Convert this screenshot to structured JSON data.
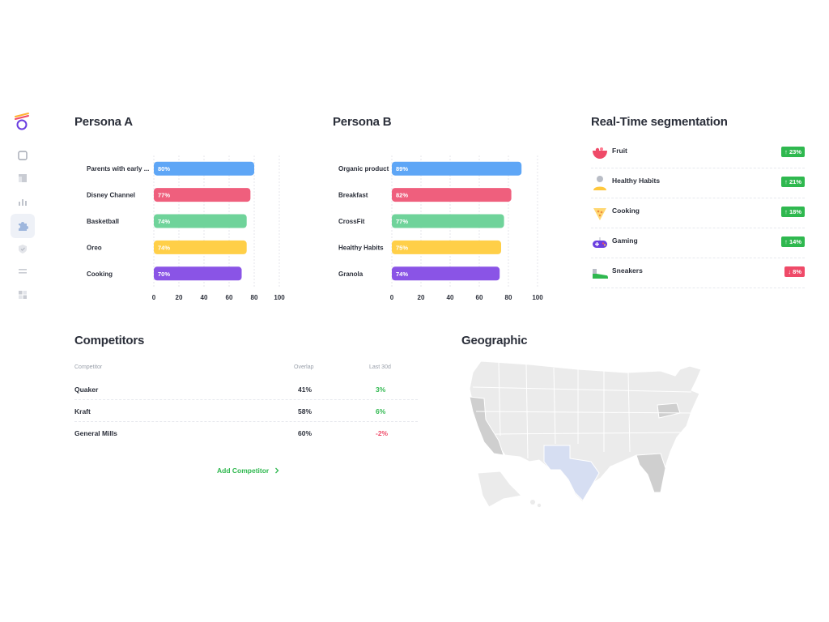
{
  "sidebar": {
    "icons": [
      "logo-icon",
      "square-icon",
      "layout-icon",
      "bar-chart-icon",
      "puzzle-icon",
      "shield-icon",
      "list-icon",
      "grid-icon"
    ],
    "active": "puzzle-icon"
  },
  "persona_a": {
    "title": "Persona A",
    "chart_data": {
      "type": "bar",
      "orientation": "horizontal",
      "categories": [
        "Parents with early ...",
        "Disney Channel",
        "Basketball",
        "Oreo",
        "Cooking"
      ],
      "values": [
        80,
        77,
        74,
        74,
        70
      ],
      "value_labels": [
        "80%",
        "77%",
        "74%",
        "74%",
        "70%"
      ],
      "colors": [
        "#5ea6f6",
        "#ef5f7d",
        "#6fd39a",
        "#ffcf48",
        "#8a54e6"
      ],
      "xticks": [
        "0",
        "20",
        "40",
        "60",
        "80",
        "100"
      ],
      "xlim": [
        0,
        100
      ],
      "grid": "vertical-dashed"
    }
  },
  "persona_b": {
    "title": "Persona B",
    "chart_data": {
      "type": "bar",
      "orientation": "horizontal",
      "categories": [
        "Organic product",
        "Breakfast",
        "CrossFit",
        "Healthy Habits",
        "Granola"
      ],
      "values": [
        89,
        82,
        77,
        75,
        74
      ],
      "value_labels": [
        "89%",
        "82%",
        "77%",
        "75%",
        "74%"
      ],
      "colors": [
        "#5ea6f6",
        "#ef5f7d",
        "#6fd39a",
        "#ffcf48",
        "#8a54e6"
      ],
      "xticks": [
        "0",
        "20",
        "40",
        "60",
        "80",
        "100"
      ],
      "xlim": [
        0,
        100
      ],
      "grid": "vertical-dashed"
    }
  },
  "segmentation": {
    "title": "Real-Time segmentation",
    "items": [
      {
        "label": "Fruit",
        "badge": "↑ 23%",
        "trend": "up",
        "icon": "fruit-bowl-icon"
      },
      {
        "label": "Healthy Habits",
        "badge": "↑ 21%",
        "trend": "up",
        "icon": "person-icon"
      },
      {
        "label": "Cooking",
        "badge": "↑ 18%",
        "trend": "up",
        "icon": "cooking-icon"
      },
      {
        "label": "Gaming",
        "badge": "↑ 14%",
        "trend": "up",
        "icon": "gamepad-icon"
      },
      {
        "label": "Sneakers",
        "badge": "↓ 8%",
        "trend": "down",
        "icon": "sneaker-icon"
      }
    ]
  },
  "competitors": {
    "title": "Competitors",
    "headers": {
      "competitor": "Competitor",
      "overlap": "Overlap",
      "last30": "Last 30d"
    },
    "rows": [
      {
        "name": "Quaker",
        "overlap": "41%",
        "last30": "3%",
        "trend": "up"
      },
      {
        "name": "Kraft",
        "overlap": "58%",
        "last30": "6%",
        "trend": "up"
      },
      {
        "name": "General Mills",
        "overlap": "60%",
        "last30": "-2%",
        "trend": "down"
      }
    ],
    "add_label": "Add Competitor",
    "add_icon": "chevron-right-icon"
  },
  "geographic": {
    "title": "Geographic",
    "highlight_colors": {
      "base": "#ebebeb",
      "medium": "#cfcfcf",
      "accent": "#d6def2"
    }
  }
}
